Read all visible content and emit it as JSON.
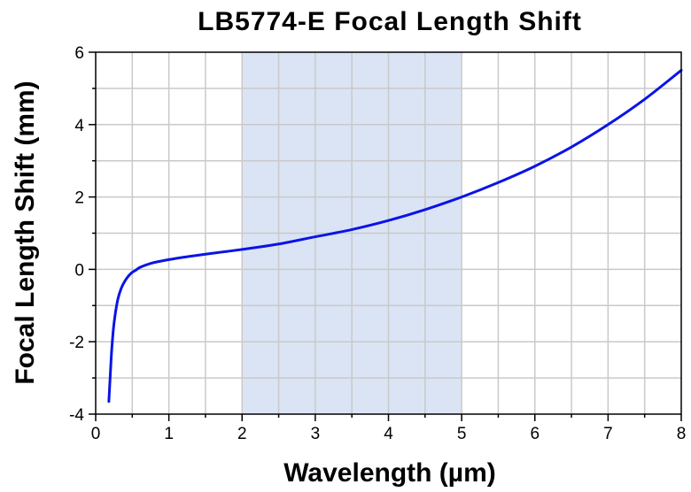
{
  "chart_data": {
    "type": "line",
    "title": "LB5774-E Focal Length Shift",
    "xlabel": "Wavelength (µm)",
    "ylabel": "Focal Length Shift (mm)",
    "xlim": [
      0,
      8
    ],
    "ylim": [
      -4,
      6
    ],
    "x_ticks": [
      0,
      1,
      2,
      3,
      4,
      5,
      6,
      7,
      8
    ],
    "y_ticks": [
      -4,
      -2,
      0,
      2,
      4,
      6
    ],
    "grid": true,
    "legend": "none",
    "highlight_band": {
      "x_start": 2,
      "x_end": 5,
      "color": "#dbe4f5"
    },
    "series": [
      {
        "color": "#0a14e6",
        "x": [
          0.18,
          0.2,
          0.22,
          0.25,
          0.3,
          0.35,
          0.4,
          0.45,
          0.5,
          0.55,
          0.6,
          0.7,
          0.8,
          1.0,
          1.25,
          1.5,
          2.0,
          2.5,
          3.0,
          3.5,
          4.0,
          4.5,
          5.0,
          5.5,
          6.0,
          6.5,
          7.0,
          7.5,
          8.0
        ],
        "y": [
          -3.65,
          -2.9,
          -2.2,
          -1.5,
          -0.85,
          -0.52,
          -0.32,
          -0.18,
          -0.08,
          -0.02,
          0.05,
          0.13,
          0.19,
          0.27,
          0.35,
          0.42,
          0.55,
          0.7,
          0.9,
          1.1,
          1.35,
          1.65,
          2.0,
          2.4,
          2.85,
          3.38,
          4.0,
          4.7,
          5.5
        ]
      }
    ]
  },
  "colors": {
    "grid": "#c9c9c9",
    "axis": "#000000",
    "band": "#dbe4f5",
    "line": "#0a14e6"
  }
}
